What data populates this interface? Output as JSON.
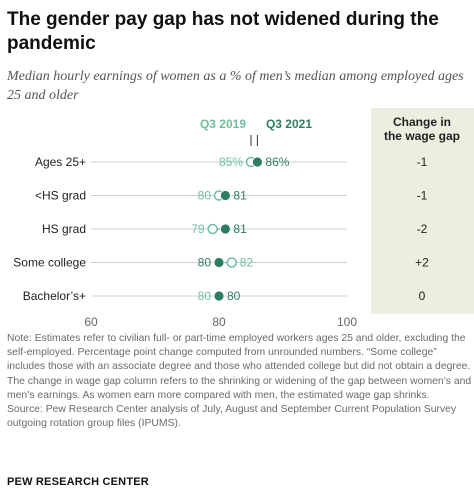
{
  "title": "The gender pay gap has not widened during the pandemic",
  "subtitle": "Median hourly earnings of women as a % of men’s median among employed ages 25 and older",
  "chart_data": {
    "type": "dot",
    "categories": [
      "Ages 25+",
      "<HS grad",
      "HS grad",
      "Some college",
      "Bachelor’s+"
    ],
    "series": [
      {
        "name": "Q3 2019",
        "values": [
          85,
          80,
          79,
          82,
          80
        ],
        "labels": [
          "85%",
          "80",
          "79",
          "82",
          "80"
        ],
        "color": "#6fbf9f",
        "style": "hollow"
      },
      {
        "name": "Q3 2021",
        "values": [
          86,
          81,
          81,
          80,
          80
        ],
        "labels": [
          "86%",
          "81",
          "81",
          "80",
          "80"
        ],
        "color": "#2e7d63",
        "style": "filled"
      }
    ],
    "xlim": [
      60,
      100
    ],
    "xticks": [
      "60",
      "80",
      "100"
    ],
    "change_column": {
      "header": "Change in the wage gap",
      "values": [
        "-1",
        "-1",
        "-2",
        "+2",
        "0"
      ],
      "background": "#eeeee0"
    },
    "grid": false
  },
  "note": "Note: Estimates refer to civilian full- or part-time employed workers ages 25 and older, excluding the self-employed. Percentage point change computed from unrounded numbers. “Some college” includes those with an associate degree and those who attended college but did not obtain a degree. The change in wage gap column refers to the shrinking or widening of the gap between women’s and men’s earnings. As women earn more compared with men, the estimated wage gap shrinks.",
  "source": "Source: Pew Research Center analysis of July, August and September Current Population Survey outgoing rotation group files (IPUMS).",
  "brand": "PEW RESEARCH CENTER"
}
